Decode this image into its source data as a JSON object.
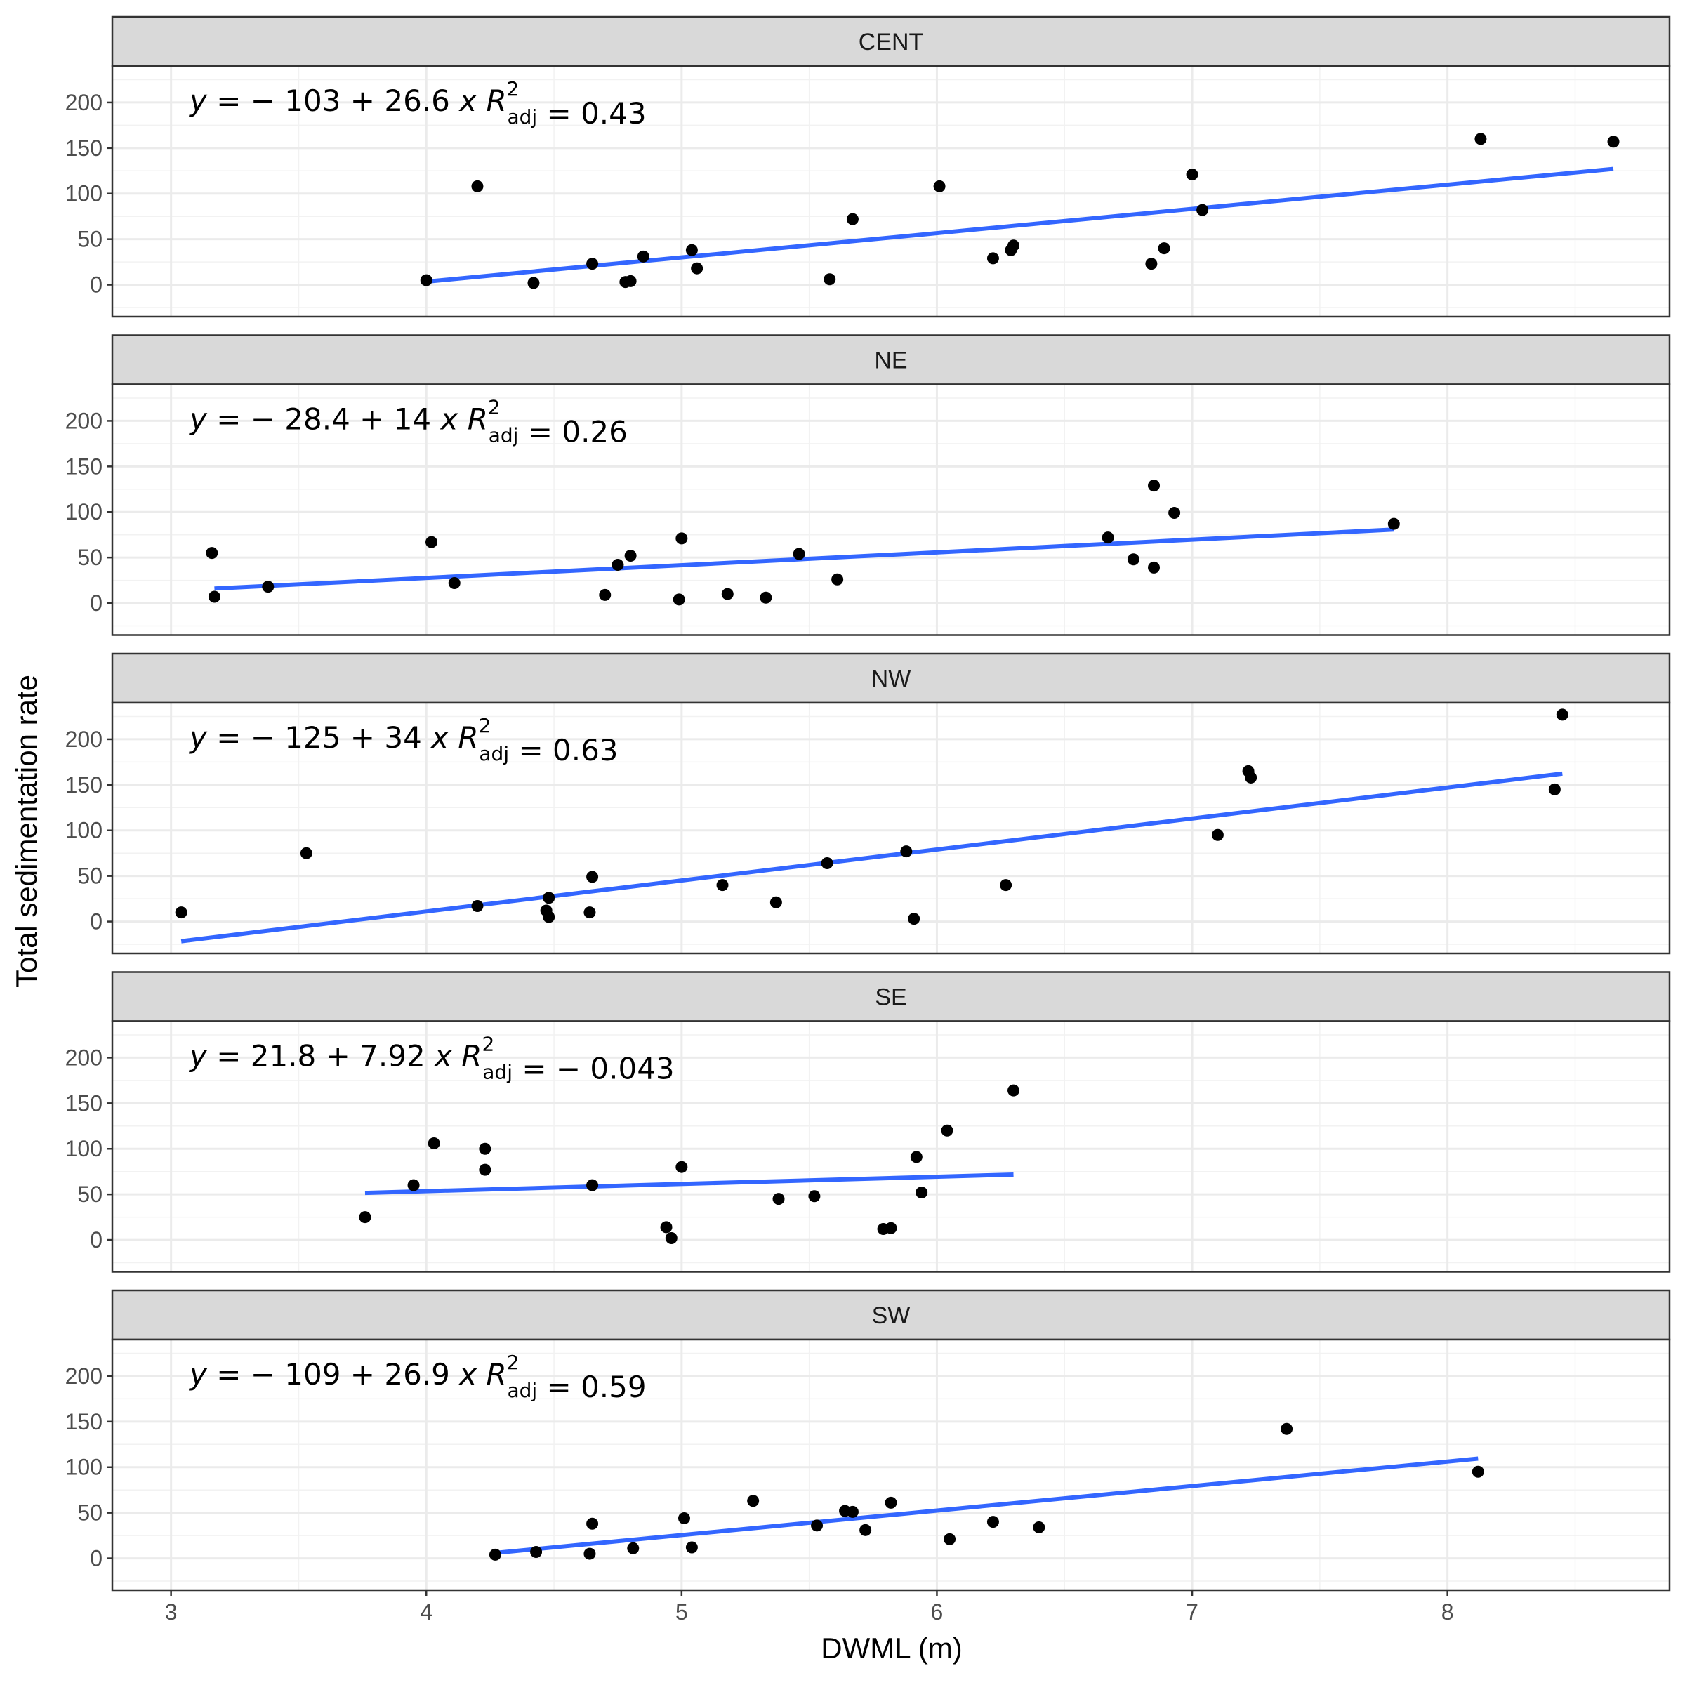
{
  "chart_data": {
    "type": "scatter",
    "xlabel": "DWML (m)",
    "ylabel": "Total sedimentation rate",
    "xlim": [
      2.77,
      8.87
    ],
    "ylim": [
      -35,
      240
    ],
    "x_ticks": [
      3,
      4,
      5,
      6,
      7,
      8
    ],
    "y_ticks": [
      0,
      50,
      100,
      150,
      200
    ],
    "grid": true,
    "fit_color": "#3366FF",
    "point_color": "#000000",
    "panels": [
      {
        "name": "CENT",
        "equation": {
          "lhs": "y",
          "eq": "=",
          "body": "− 103 + 26.6",
          "var": "x",
          "r": "R",
          "sup": "2",
          "sub": "adj",
          "r_eq": "=",
          "r_value": "0.43"
        },
        "fit": {
          "x": [
            4.0,
            8.65
          ],
          "y": [
            3.4,
            127.1
          ]
        },
        "points": [
          [
            4.0,
            5
          ],
          [
            4.2,
            108
          ],
          [
            4.42,
            2
          ],
          [
            4.65,
            23
          ],
          [
            4.78,
            3
          ],
          [
            4.8,
            4
          ],
          [
            4.85,
            31
          ],
          [
            5.04,
            38
          ],
          [
            5.06,
            18
          ],
          [
            5.58,
            6
          ],
          [
            5.67,
            72
          ],
          [
            6.01,
            108
          ],
          [
            6.22,
            29
          ],
          [
            6.29,
            38
          ],
          [
            6.3,
            43
          ],
          [
            6.84,
            23
          ],
          [
            6.89,
            40
          ],
          [
            7.0,
            121
          ],
          [
            7.04,
            82
          ],
          [
            8.13,
            160
          ],
          [
            8.65,
            157
          ]
        ]
      },
      {
        "name": "NE",
        "equation": {
          "lhs": "y",
          "eq": "=",
          "body": "− 28.4 + 14",
          "var": "x",
          "r": "R",
          "sup": "2",
          "sub": "adj",
          "r_eq": "=",
          "r_value": "0.26"
        },
        "fit": {
          "x": [
            3.17,
            7.79
          ],
          "y": [
            16.0,
            80.7
          ]
        },
        "points": [
          [
            3.16,
            55
          ],
          [
            3.17,
            7
          ],
          [
            3.38,
            18
          ],
          [
            4.02,
            67
          ],
          [
            4.11,
            22
          ],
          [
            4.7,
            9
          ],
          [
            4.75,
            42
          ],
          [
            4.8,
            52
          ],
          [
            4.99,
            4
          ],
          [
            5.0,
            71
          ],
          [
            5.18,
            10
          ],
          [
            5.33,
            6
          ],
          [
            5.46,
            54
          ],
          [
            5.61,
            26
          ],
          [
            6.67,
            72
          ],
          [
            6.77,
            48
          ],
          [
            6.85,
            39
          ],
          [
            6.85,
            129
          ],
          [
            6.93,
            99
          ],
          [
            7.79,
            87
          ]
        ]
      },
      {
        "name": "NW",
        "equation": {
          "lhs": "y",
          "eq": "=",
          "body": "− 125 + 34",
          "var": "x",
          "r": "R",
          "sup": "2",
          "sub": "adj",
          "r_eq": "=",
          "r_value": "0.63"
        },
        "fit": {
          "x": [
            3.04,
            8.45
          ],
          "y": [
            -21.6,
            162.3
          ]
        },
        "points": [
          [
            3.04,
            10
          ],
          [
            3.53,
            75
          ],
          [
            4.2,
            17
          ],
          [
            4.47,
            12
          ],
          [
            4.48,
            26
          ],
          [
            4.48,
            5
          ],
          [
            4.64,
            10
          ],
          [
            4.65,
            49
          ],
          [
            5.16,
            40
          ],
          [
            5.37,
            21
          ],
          [
            5.57,
            64
          ],
          [
            5.88,
            77
          ],
          [
            5.91,
            3
          ],
          [
            6.27,
            40
          ],
          [
            7.1,
            95
          ],
          [
            7.22,
            165
          ],
          [
            7.23,
            158
          ],
          [
            8.42,
            145
          ],
          [
            8.45,
            227
          ]
        ]
      },
      {
        "name": "SE",
        "equation": {
          "lhs": "y",
          "eq": "=",
          "body": "21.8 + 7.92",
          "var": "x",
          "r": "R",
          "sup": "2",
          "sub": "adj",
          "r_eq": "=",
          "r_value": "− 0.043"
        },
        "fit": {
          "x": [
            3.76,
            6.3
          ],
          "y": [
            51.6,
            71.7
          ]
        },
        "points": [
          [
            3.76,
            25
          ],
          [
            3.95,
            60
          ],
          [
            4.03,
            106
          ],
          [
            4.23,
            100
          ],
          [
            4.23,
            77
          ],
          [
            4.65,
            60
          ],
          [
            4.94,
            14
          ],
          [
            4.96,
            2
          ],
          [
            5.0,
            80
          ],
          [
            5.38,
            45
          ],
          [
            5.52,
            48
          ],
          [
            5.79,
            12
          ],
          [
            5.82,
            13
          ],
          [
            5.92,
            91
          ],
          [
            5.94,
            52
          ],
          [
            6.04,
            120
          ],
          [
            6.3,
            164
          ]
        ]
      },
      {
        "name": "SW",
        "equation": {
          "lhs": "y",
          "eq": "=",
          "body": "− 109 + 26.9",
          "var": "x",
          "r": "R",
          "sup": "2",
          "sub": "adj",
          "r_eq": "=",
          "r_value": "0.59"
        },
        "fit": {
          "x": [
            4.27,
            8.12
          ],
          "y": [
            5.9,
            109.4
          ]
        },
        "points": [
          [
            4.27,
            4
          ],
          [
            4.43,
            7
          ],
          [
            4.64,
            5
          ],
          [
            4.65,
            38
          ],
          [
            4.81,
            11
          ],
          [
            5.01,
            44
          ],
          [
            5.04,
            12
          ],
          [
            5.28,
            63
          ],
          [
            5.53,
            36
          ],
          [
            5.64,
            52
          ],
          [
            5.67,
            51
          ],
          [
            5.72,
            31
          ],
          [
            5.82,
            61
          ],
          [
            6.05,
            21
          ],
          [
            6.22,
            40
          ],
          [
            6.4,
            34
          ],
          [
            7.37,
            142
          ],
          [
            8.12,
            95
          ]
        ]
      }
    ]
  }
}
